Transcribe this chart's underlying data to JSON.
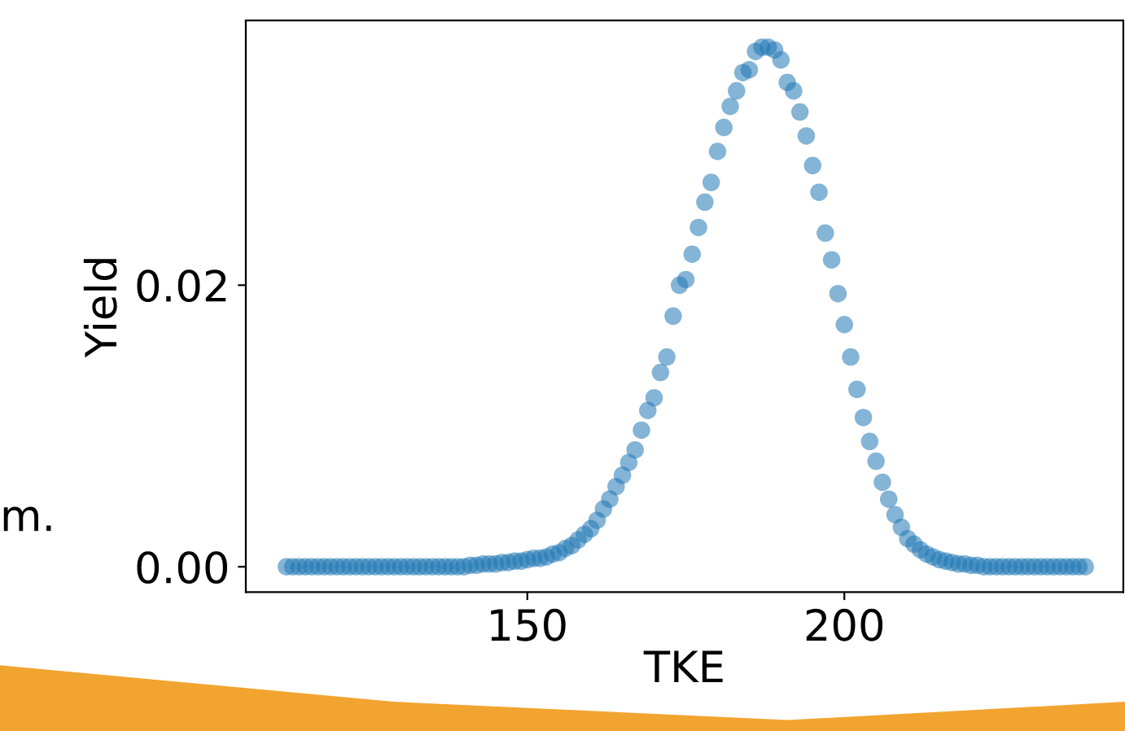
{
  "chart_data": {
    "type": "scatter",
    "xlabel": "TKE",
    "ylabel": "Yield",
    "annotations": [
      "m."
    ],
    "xlim": [
      105.6,
      244
    ],
    "ylim": [
      -0.0018,
      0.0388
    ],
    "xticks": [
      150,
      200
    ],
    "yticks": [
      {
        "value": 0,
        "label": "0.00"
      },
      {
        "value": 0.02,
        "label": "0.02"
      }
    ],
    "grid": false,
    "marker": "circle",
    "x": [
      112,
      113,
      114,
      115,
      116,
      117,
      118,
      119,
      120,
      121,
      122,
      123,
      124,
      125,
      126,
      127,
      128,
      129,
      130,
      131,
      132,
      133,
      134,
      135,
      136,
      137,
      138,
      139,
      140,
      141,
      142,
      143,
      144,
      145,
      146,
      147,
      148,
      149,
      150,
      151,
      152,
      153,
      154,
      155,
      156,
      157,
      158,
      159,
      160,
      161,
      162,
      163,
      164,
      165,
      166,
      167,
      168,
      169,
      170,
      171,
      172,
      173,
      174,
      175,
      176,
      177,
      178,
      179,
      180,
      181,
      182,
      183,
      184,
      185,
      186,
      187,
      188,
      189,
      190,
      191,
      192,
      193,
      194,
      195,
      196,
      197,
      198,
      199,
      200,
      201,
      202,
      203,
      204,
      205,
      206,
      207,
      208,
      209,
      210,
      211,
      212,
      213,
      214,
      215,
      216,
      217,
      218,
      219,
      220,
      221,
      222,
      223,
      224,
      225,
      226,
      227,
      228,
      229,
      230,
      231,
      232,
      233,
      234,
      235,
      236,
      237,
      238
    ],
    "series": [
      {
        "color": "#1f77b4",
        "values": [
          0,
          0,
          0,
          0,
          0,
          0,
          0,
          0,
          0,
          0,
          0,
          0,
          0,
          0,
          0,
          0,
          0,
          0,
          0,
          0,
          0,
          0,
          0,
          0,
          0,
          0,
          0,
          0,
          0,
          0.0001,
          0.0001,
          0.0002,
          0.0002,
          0.0002,
          0.0003,
          0.0003,
          0.0004,
          0.0004,
          0.0005,
          0.0006,
          0.0006,
          0.0007,
          0.0009,
          0.001,
          0.0013,
          0.0015,
          0.0019,
          0.0023,
          0.0027,
          0.0033,
          0.0041,
          0.0048,
          0.0057,
          0.0065,
          0.0074,
          0.0083,
          0.0097,
          0.0111,
          0.012,
          0.0138,
          0.0149,
          0.0178,
          0.02,
          0.0204,
          0.0222,
          0.0241,
          0.0259,
          0.0273,
          0.0295,
          0.0312,
          0.0327,
          0.0338,
          0.0351,
          0.0353,
          0.0366,
          0.0369,
          0.0369,
          0.0367,
          0.036,
          0.0344,
          0.0338,
          0.0323,
          0.0306,
          0.0285,
          0.0266,
          0.0237,
          0.0218,
          0.0194,
          0.0172,
          0.0149,
          0.0126,
          0.0106,
          0.0089,
          0.0075,
          0.006,
          0.0048,
          0.0037,
          0.0028,
          0.002,
          0.0016,
          0.0012,
          0.0009,
          0.0007,
          0.0005,
          0.0004,
          0.0003,
          0.0002,
          0.0002,
          0.0001,
          0.0001,
          0,
          0,
          0,
          0,
          0,
          0,
          0,
          0,
          0,
          0,
          0,
          0,
          0,
          0,
          0,
          0,
          0
        ]
      }
    ]
  }
}
